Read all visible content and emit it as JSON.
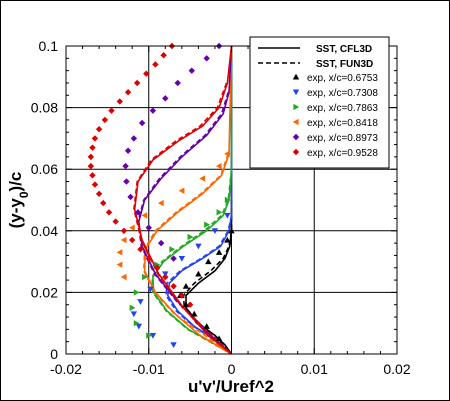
{
  "chart_data": {
    "type": "line",
    "xlabel": "u'v'/Uref^2",
    "ylabel_main": "(y-y",
    "ylabel_sub": "0",
    "ylabel_tail": ")/c",
    "xlim": [
      -0.02,
      0.02
    ],
    "ylim": [
      0,
      0.1
    ],
    "x_ticks": [
      -0.02,
      -0.01,
      0,
      0.01,
      0.02
    ],
    "x_tick_labels": [
      "-0.02",
      "-0.01",
      "0",
      "0.01",
      "0.02"
    ],
    "y_ticks": [
      0,
      0.02,
      0.04,
      0.06,
      0.08,
      0.1
    ],
    "y_tick_labels": [
      "0",
      "0.02",
      "0.04",
      "0.06",
      "0.08",
      "0.1"
    ],
    "grid": true,
    "legend_position": "top-right",
    "line_legend": [
      {
        "name": "SST, CFL3D",
        "dash": "solid"
      },
      {
        "name": "SST, FUN3D",
        "dash": "dashed"
      }
    ],
    "stations": [
      {
        "name": "exp, x/c=0.6753",
        "color": "#000000",
        "marker": "triangle-up",
        "cfl3d": [
          [
            0,
            0.1
          ],
          [
            0,
            0.05
          ],
          [
            0,
            0.04
          ],
          [
            -0.0002,
            0.035
          ],
          [
            -0.0008,
            0.031
          ],
          [
            -0.002,
            0.027
          ],
          [
            -0.004,
            0.023
          ],
          [
            -0.0055,
            0.019
          ],
          [
            -0.0055,
            0.015
          ],
          [
            -0.004,
            0.01
          ],
          [
            -0.002,
            0.006
          ],
          [
            -0.0008,
            0.003
          ],
          [
            0,
            0
          ]
        ],
        "fun3d": [
          [
            0,
            0.05
          ],
          [
            0,
            0.04
          ],
          [
            -0.0003,
            0.035
          ],
          [
            -0.001,
            0.031
          ],
          [
            -0.0025,
            0.027
          ],
          [
            -0.0045,
            0.023
          ],
          [
            -0.0058,
            0.019
          ],
          [
            -0.0057,
            0.015
          ],
          [
            -0.0042,
            0.01
          ],
          [
            -0.002,
            0.006
          ],
          [
            0,
            0
          ]
        ],
        "exp": [
          [
            0,
            0.04
          ],
          [
            -0.0005,
            0.037
          ],
          [
            -0.0015,
            0.033
          ],
          [
            -0.0028,
            0.03
          ],
          [
            -0.004,
            0.026
          ],
          [
            -0.0055,
            0.022
          ],
          [
            -0.0062,
            0.019
          ],
          [
            -0.0055,
            0.016
          ],
          [
            -0.0045,
            0.013
          ],
          [
            -0.003,
            0.009
          ],
          [
            -0.0015,
            0.005
          ]
        ]
      },
      {
        "name": "exp, x/c=0.7308",
        "color": "#2244ee",
        "marker": "triangle-down",
        "cfl3d": [
          [
            0,
            0.1
          ],
          [
            0,
            0.055
          ],
          [
            0,
            0.045
          ],
          [
            -0.0003,
            0.04
          ],
          [
            -0.0013,
            0.035
          ],
          [
            -0.0035,
            0.031
          ],
          [
            -0.006,
            0.027
          ],
          [
            -0.0075,
            0.023
          ],
          [
            -0.0077,
            0.019
          ],
          [
            -0.0065,
            0.014
          ],
          [
            -0.0045,
            0.009
          ],
          [
            -0.0022,
            0.005
          ],
          [
            0,
            0
          ]
        ],
        "fun3d": [
          [
            0,
            0.045
          ],
          [
            -0.0004,
            0.04
          ],
          [
            -0.0015,
            0.035
          ],
          [
            -0.0037,
            0.031
          ],
          [
            -0.0062,
            0.027
          ],
          [
            -0.0078,
            0.023
          ],
          [
            -0.0079,
            0.019
          ],
          [
            -0.0067,
            0.014
          ],
          [
            -0.0046,
            0.009
          ],
          [
            -0.0023,
            0.005
          ],
          [
            0,
            0
          ]
        ],
        "exp": [
          [
            -0.0005,
            0.045
          ],
          [
            -0.002,
            0.04
          ],
          [
            -0.004,
            0.035
          ],
          [
            -0.006,
            0.031
          ],
          [
            -0.008,
            0.026
          ],
          [
            -0.0098,
            0.021
          ],
          [
            -0.011,
            0.017
          ],
          [
            -0.0118,
            0.013
          ],
          [
            -0.0112,
            0.009
          ],
          [
            -0.0095,
            0.006
          ],
          [
            -0.007,
            0.003
          ]
        ]
      },
      {
        "name": "exp, x/c=0.7863",
        "color": "#22aa22",
        "marker": "triangle-right",
        "cfl3d": [
          [
            0,
            0.1
          ],
          [
            0,
            0.06
          ],
          [
            -0.0003,
            0.05
          ],
          [
            -0.001,
            0.045
          ],
          [
            -0.003,
            0.04
          ],
          [
            -0.0058,
            0.035
          ],
          [
            -0.0082,
            0.03
          ],
          [
            -0.0095,
            0.025
          ],
          [
            -0.0094,
            0.02
          ],
          [
            -0.0078,
            0.014
          ],
          [
            -0.0052,
            0.008
          ],
          [
            -0.0025,
            0.004
          ],
          [
            0,
            0
          ]
        ],
        "fun3d": [
          [
            0,
            0.06
          ],
          [
            -0.0004,
            0.05
          ],
          [
            -0.0012,
            0.045
          ],
          [
            -0.0033,
            0.04
          ],
          [
            -0.006,
            0.035
          ],
          [
            -0.0084,
            0.03
          ],
          [
            -0.0096,
            0.025
          ],
          [
            -0.0095,
            0.02
          ],
          [
            -0.0079,
            0.014
          ],
          [
            -0.0053,
            0.008
          ],
          [
            0,
            0
          ]
        ],
        "exp": [
          [
            -0.0005,
            0.05
          ],
          [
            -0.0015,
            0.046
          ],
          [
            -0.003,
            0.042
          ],
          [
            -0.005,
            0.038
          ],
          [
            -0.0072,
            0.034
          ],
          [
            -0.009,
            0.029
          ],
          [
            -0.0105,
            0.025
          ],
          [
            -0.0115,
            0.02
          ],
          [
            -0.012,
            0.015
          ],
          [
            -0.0115,
            0.01
          ],
          [
            -0.01,
            0.006
          ]
        ]
      },
      {
        "name": "exp, x/c=0.8418",
        "color": "#ff6600",
        "marker": "triangle-left",
        "cfl3d": [
          [
            0,
            0.1
          ],
          [
            -0.0003,
            0.065
          ],
          [
            -0.0012,
            0.058
          ],
          [
            -0.0035,
            0.052
          ],
          [
            -0.0065,
            0.046
          ],
          [
            -0.009,
            0.04
          ],
          [
            -0.0104,
            0.034
          ],
          [
            -0.0105,
            0.027
          ],
          [
            -0.0092,
            0.02
          ],
          [
            -0.0068,
            0.013
          ],
          [
            -0.0038,
            0.006
          ],
          [
            0,
            0
          ]
        ],
        "fun3d": [
          [
            -0.0004,
            0.065
          ],
          [
            -0.0013,
            0.058
          ],
          [
            -0.0037,
            0.052
          ],
          [
            -0.0067,
            0.046
          ],
          [
            -0.0092,
            0.04
          ],
          [
            -0.0105,
            0.034
          ],
          [
            -0.0106,
            0.027
          ],
          [
            -0.0093,
            0.02
          ],
          [
            -0.0069,
            0.013
          ],
          [
            0,
            0
          ]
        ],
        "exp": [
          [
            -0.0005,
            0.065
          ],
          [
            -0.0015,
            0.061
          ],
          [
            -0.0035,
            0.057
          ],
          [
            -0.006,
            0.053
          ],
          [
            -0.0085,
            0.049
          ],
          [
            -0.0105,
            0.045
          ],
          [
            -0.012,
            0.041
          ],
          [
            -0.013,
            0.037
          ],
          [
            -0.0135,
            0.033
          ],
          [
            -0.0135,
            0.029
          ],
          [
            -0.013,
            0.025
          ]
        ]
      },
      {
        "name": "exp, x/c=0.8973",
        "color": "#6600aa",
        "marker": "diamond",
        "cfl3d": [
          [
            0,
            0.1
          ],
          [
            -0.0003,
            0.085
          ],
          [
            -0.001,
            0.078
          ],
          [
            -0.003,
            0.071
          ],
          [
            -0.006,
            0.064
          ],
          [
            -0.0085,
            0.057
          ],
          [
            -0.0105,
            0.05
          ],
          [
            -0.0112,
            0.043
          ],
          [
            -0.0108,
            0.035
          ],
          [
            -0.0092,
            0.026
          ],
          [
            -0.0065,
            0.017
          ],
          [
            -0.0033,
            0.008
          ],
          [
            0,
            0
          ]
        ],
        "fun3d": [
          [
            -0.0004,
            0.085
          ],
          [
            -0.0012,
            0.078
          ],
          [
            -0.0032,
            0.071
          ],
          [
            -0.0062,
            0.064
          ],
          [
            -0.0087,
            0.057
          ],
          [
            -0.0106,
            0.05
          ],
          [
            -0.0113,
            0.043
          ],
          [
            -0.0109,
            0.035
          ],
          [
            -0.0093,
            0.026
          ],
          [
            -0.0066,
            0.017
          ],
          [
            0,
            0
          ]
        ],
        "exp": [
          [
            -0.0015,
            0.1
          ],
          [
            -0.003,
            0.096
          ],
          [
            -0.0048,
            0.092
          ],
          [
            -0.0065,
            0.088
          ],
          [
            -0.008,
            0.083
          ],
          [
            -0.0095,
            0.079
          ],
          [
            -0.0108,
            0.075
          ],
          [
            -0.0118,
            0.07
          ],
          [
            -0.0125,
            0.066
          ],
          [
            -0.0128,
            0.061
          ],
          [
            -0.0127,
            0.056
          ],
          [
            -0.0122,
            0.051
          ],
          [
            -0.0113,
            0.046
          ],
          [
            -0.01,
            0.041
          ],
          [
            -0.0085,
            0.036
          ],
          [
            -0.007,
            0.031
          ]
        ]
      },
      {
        "name": "exp, x/c=0.9528",
        "color": "#dd0000",
        "marker": "diamond",
        "cfl3d": [
          [
            0,
            0.1
          ],
          [
            -0.0005,
            0.088
          ],
          [
            -0.0015,
            0.08
          ],
          [
            -0.0035,
            0.074
          ],
          [
            -0.0065,
            0.069
          ],
          [
            -0.0095,
            0.063
          ],
          [
            -0.0113,
            0.056
          ],
          [
            -0.0117,
            0.047
          ],
          [
            -0.0108,
            0.037
          ],
          [
            -0.0088,
            0.026
          ],
          [
            -0.0058,
            0.015
          ],
          [
            -0.0028,
            0.006
          ],
          [
            0,
            0
          ]
        ],
        "fun3d": [
          [
            -0.0006,
            0.088
          ],
          [
            -0.0017,
            0.08
          ],
          [
            -0.0038,
            0.074
          ],
          [
            -0.0068,
            0.069
          ],
          [
            -0.0097,
            0.063
          ],
          [
            -0.0114,
            0.056
          ],
          [
            -0.0118,
            0.047
          ],
          [
            -0.0109,
            0.037
          ],
          [
            -0.0089,
            0.026
          ],
          [
            -0.0059,
            0.015
          ],
          [
            0,
            0
          ]
        ],
        "exp": [
          [
            -0.0072,
            0.1
          ],
          [
            -0.0082,
            0.097
          ],
          [
            -0.0092,
            0.094
          ],
          [
            -0.0103,
            0.091
          ],
          [
            -0.0114,
            0.088
          ],
          [
            -0.0125,
            0.085
          ],
          [
            -0.0135,
            0.082
          ],
          [
            -0.0145,
            0.079
          ],
          [
            -0.0153,
            0.076
          ],
          [
            -0.016,
            0.073
          ],
          [
            -0.0165,
            0.07
          ],
          [
            -0.0168,
            0.067
          ],
          [
            -0.017,
            0.064
          ],
          [
            -0.017,
            0.061
          ],
          [
            -0.0168,
            0.058
          ],
          [
            -0.0165,
            0.055
          ],
          [
            -0.016,
            0.052
          ],
          [
            -0.0155,
            0.049
          ],
          [
            -0.0148,
            0.046
          ],
          [
            -0.014,
            0.043
          ],
          [
            -0.013,
            0.04
          ],
          [
            -0.012,
            0.037
          ],
          [
            -0.011,
            0.034
          ],
          [
            -0.01,
            0.031
          ],
          [
            -0.009,
            0.028
          ],
          [
            -0.008,
            0.025
          ],
          [
            -0.007,
            0.022
          ],
          [
            -0.006,
            0.019
          ],
          [
            -0.005,
            0.016
          ]
        ]
      }
    ]
  }
}
